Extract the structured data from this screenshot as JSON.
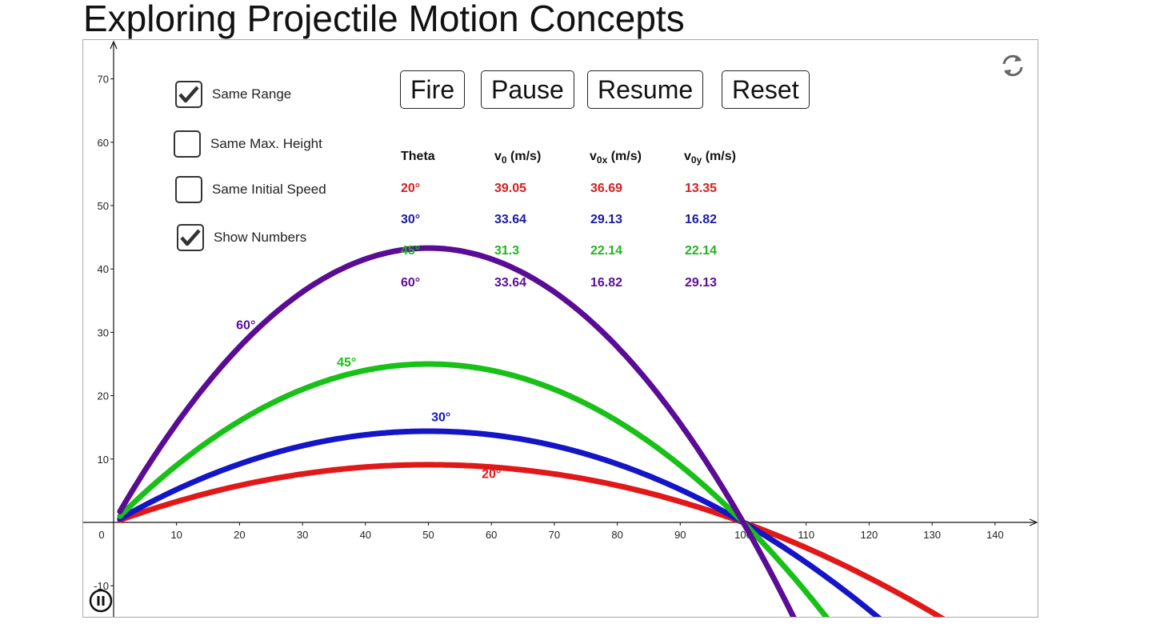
{
  "title": "Exploring Projectile Motion Concepts",
  "checkboxes": [
    {
      "label": "Same Range",
      "checked": true
    },
    {
      "label": "Same Max. Height",
      "checked": false
    },
    {
      "label": "Same Initial Speed",
      "checked": false
    },
    {
      "label": "Show Numbers",
      "checked": true
    }
  ],
  "buttons": {
    "fire": "Fire",
    "pause": "Pause",
    "resume": "Resume",
    "reset": "Reset"
  },
  "table": {
    "headers": {
      "theta": "Theta",
      "v0": {
        "main": "v",
        "sub": "0",
        "unit": " (m/s)"
      },
      "v0x": {
        "main": "v",
        "sub": "0x",
        "unit": " (m/s)"
      },
      "v0y": {
        "main": "v",
        "sub": "0y",
        "unit": " (m/s)"
      }
    },
    "rows": [
      {
        "theta": "20°",
        "v0": "39.05",
        "v0x": "36.69",
        "v0y": "13.35",
        "color": "#d42020"
      },
      {
        "theta": "30°",
        "v0": "33.64",
        "v0x": "29.13",
        "v0y": "16.82",
        "color": "#1a1aa6"
      },
      {
        "theta": "45°",
        "v0": "31.3",
        "v0x": "22.14",
        "v0y": "22.14",
        "color": "#22b422"
      },
      {
        "theta": "60°",
        "v0": "33.64",
        "v0x": "16.82",
        "v0y": "29.13",
        "color": "#5c1090"
      }
    ]
  },
  "graph": {
    "x_ticks": [
      0,
      10,
      20,
      30,
      40,
      50,
      60,
      70,
      80,
      90,
      100,
      110,
      120,
      130,
      140
    ],
    "y_ticks": [
      -10,
      10,
      20,
      30,
      40,
      50,
      60,
      70
    ],
    "trajectories": [
      {
        "angle": 20,
        "label": "20°",
        "color": "#e01818",
        "apex": 9.1
      },
      {
        "angle": 30,
        "label": "30°",
        "color": "#1515c8",
        "apex": 14.4
      },
      {
        "angle": 45,
        "label": "45°",
        "color": "#18c018",
        "apex": 25
      },
      {
        "angle": 60,
        "label": "60°",
        "color": "#5a0c96",
        "apex": 43.3
      }
    ]
  },
  "icons": {
    "refresh": "refresh-icon",
    "pause_animation": "pause-circle-icon",
    "checkmark": "checkmark-icon"
  }
}
